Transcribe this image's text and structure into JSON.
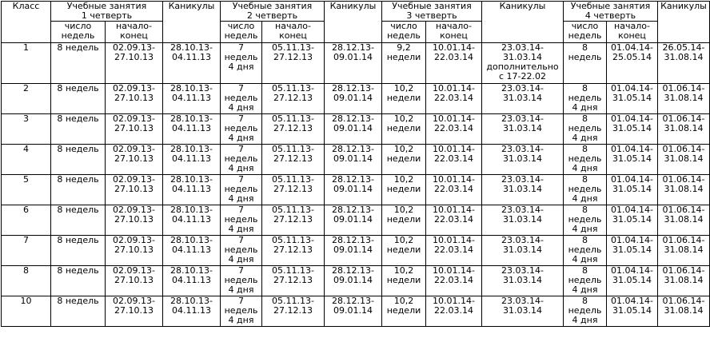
{
  "headers": {
    "klass": "Класс",
    "q1": [
      "Учебные занятия",
      "1 четверть"
    ],
    "kan1": "Каникулы",
    "q2": [
      "Учебные занятия",
      "2 четверть"
    ],
    "kan2": "Каникулы",
    "q3": [
      "Учебные занятия",
      "3 четверть"
    ],
    "kan3": "Каникулы",
    "q4": [
      "Учебные занятия",
      "4 четверть"
    ],
    "kan4": "Каникулы",
    "count": [
      "число",
      "недель"
    ],
    "range": [
      "начало-",
      "конец"
    ]
  },
  "rows": [
    {
      "klass": "1",
      "q1_weeks": [
        "8 недель"
      ],
      "q1_dates": [
        "02.09.13-",
        "27.10.13"
      ],
      "k1": [
        "28.10.13-",
        "04.11.13"
      ],
      "q2_weeks": [
        "7",
        "недель",
        "4 дня"
      ],
      "q2_dates": [
        "05.11.13-",
        "27.12.13"
      ],
      "k2": [
        "28.12.13-",
        "09.01.14"
      ],
      "q3_weeks": [
        "9,2",
        "недели"
      ],
      "q3_dates": [
        "10.01.14-",
        "22.03.14"
      ],
      "k3": [
        "23.03.14-",
        "31.03.14",
        "дополнительно",
        "с 17-22.02"
      ],
      "q4_weeks": [
        "8",
        "недель"
      ],
      "q4_dates": [
        "01.04.14-",
        "25.05.14"
      ],
      "k4": [
        "26.05.14-",
        "31.08.14"
      ]
    },
    {
      "klass": "2",
      "q1_weeks": [
        "8 недель"
      ],
      "q1_dates": [
        "02.09.13-",
        "27.10.13"
      ],
      "k1": [
        "28.10.13-",
        "04.11.13"
      ],
      "q2_weeks": [
        "7",
        "недель",
        "4 дня"
      ],
      "q2_dates": [
        "05.11.13-",
        "27.12.13"
      ],
      "k2": [
        "28.12.13-",
        "09.01.14"
      ],
      "q3_weeks": [
        "10,2",
        "недели"
      ],
      "q3_dates": [
        "10.01.14-",
        "22.03.14"
      ],
      "k3": [
        "23.03.14-",
        "31.03.14"
      ],
      "q4_weeks": [
        "8",
        "недель",
        "4 дня"
      ],
      "q4_dates": [
        "01.04.14-",
        "31.05.14"
      ],
      "k4": [
        "01.06.14-",
        "31.08.14"
      ]
    },
    {
      "klass": "3",
      "q1_weeks": [
        "8 недель"
      ],
      "q1_dates": [
        "02.09.13-",
        "27.10.13"
      ],
      "k1": [
        "28.10.13-",
        "04.11.13"
      ],
      "q2_weeks": [
        "7",
        "недель",
        "4 дня"
      ],
      "q2_dates": [
        "05.11.13-",
        "27.12.13"
      ],
      "k2": [
        "28.12.13-",
        "09.01.14"
      ],
      "q3_weeks": [
        "10,2",
        "недели"
      ],
      "q3_dates": [
        "10.01.14-",
        "22.03.14"
      ],
      "k3": [
        "23.03.14-",
        "31.03.14"
      ],
      "q4_weeks": [
        "8",
        "недель",
        "4 дня"
      ],
      "q4_dates": [
        "01.04.14-",
        "31.05.14"
      ],
      "k4": [
        "01.06.14-",
        "31.08.14"
      ]
    },
    {
      "klass": "4",
      "q1_weeks": [
        "8 недель"
      ],
      "q1_dates": [
        "02.09.13-",
        "27.10.13"
      ],
      "k1": [
        "28.10.13-",
        "04.11.13"
      ],
      "q2_weeks": [
        "7",
        "недель",
        "4 дня"
      ],
      "q2_dates": [
        "05.11.13-",
        "27.12.13"
      ],
      "k2": [
        "28.12.13-",
        "09.01.14"
      ],
      "q3_weeks": [
        "10,2",
        "недели"
      ],
      "q3_dates": [
        "10.01.14-",
        "22.03.14"
      ],
      "k3": [
        "23.03.14-",
        "31.03.14"
      ],
      "q4_weeks": [
        "8",
        "недель",
        "4 дня"
      ],
      "q4_dates": [
        "01.04.14-",
        "31.05.14"
      ],
      "k4": [
        "01.06.14-",
        "31.08.14"
      ]
    },
    {
      "klass": "5",
      "q1_weeks": [
        "8 недель"
      ],
      "q1_dates": [
        "02.09.13-",
        "27.10.13"
      ],
      "k1": [
        "28.10.13-",
        "04.11.13"
      ],
      "q2_weeks": [
        "7",
        "недель",
        "4 дня"
      ],
      "q2_dates": [
        "05.11.13-",
        "27.12.13"
      ],
      "k2": [
        "28.12.13-",
        "09.01.14"
      ],
      "q3_weeks": [
        "10,2",
        "недели"
      ],
      "q3_dates": [
        "10.01.14-",
        "22.03.14"
      ],
      "k3": [
        "23.03.14-",
        "31.03.14"
      ],
      "q4_weeks": [
        "8",
        "недель",
        "4 дня"
      ],
      "q4_dates": [
        "01.04.14-",
        "31.05.14"
      ],
      "k4": [
        "01.06.14-",
        "31.08.14"
      ]
    },
    {
      "klass": "6",
      "q1_weeks": [
        "8 недель"
      ],
      "q1_dates": [
        "02.09.13-",
        "27.10.13"
      ],
      "k1": [
        "28.10.13-",
        "04.11.13"
      ],
      "q2_weeks": [
        "7",
        "недель",
        "4 дня"
      ],
      "q2_dates": [
        "05.11.13-",
        "27.12.13"
      ],
      "k2": [
        "28.12.13-",
        "09.01.14"
      ],
      "q3_weeks": [
        "10,2",
        "недели"
      ],
      "q3_dates": [
        "10.01.14-",
        "22.03.14"
      ],
      "k3": [
        "23.03.14-",
        "31.03.14"
      ],
      "q4_weeks": [
        "8",
        "недель",
        "4 дня"
      ],
      "q4_dates": [
        "01.04.14-",
        "31.05.14"
      ],
      "k4": [
        "01.06.14-",
        "31.08.14"
      ]
    },
    {
      "klass": "7",
      "q1_weeks": [
        "8 недель"
      ],
      "q1_dates": [
        "02.09.13-",
        "27.10.13"
      ],
      "k1": [
        "28.10.13-",
        "04.11.13"
      ],
      "q2_weeks": [
        "7",
        "недель",
        "4 дня"
      ],
      "q2_dates": [
        "05.11.13-",
        "27.12.13"
      ],
      "k2": [
        "28.12.13-",
        "09.01.14"
      ],
      "q3_weeks": [
        "10,2",
        "недели"
      ],
      "q3_dates": [
        "10.01.14-",
        "22.03.14"
      ],
      "k3": [
        "23.03.14-",
        "31.03.14"
      ],
      "q4_weeks": [
        "8",
        "недель",
        "4 дня"
      ],
      "q4_dates": [
        "01.04.14-",
        "31.05.14"
      ],
      "k4": [
        "01.06.14-",
        "31.08.14"
      ]
    },
    {
      "klass": "8",
      "q1_weeks": [
        "8 недель"
      ],
      "q1_dates": [
        "02.09.13-",
        "27.10.13"
      ],
      "k1": [
        "28.10.13-",
        "04.11.13"
      ],
      "q2_weeks": [
        "7",
        "недель",
        "4 дня"
      ],
      "q2_dates": [
        "05.11.13-",
        "27.12.13"
      ],
      "k2": [
        "28.12.13-",
        "09.01.14"
      ],
      "q3_weeks": [
        "10,2",
        "недели"
      ],
      "q3_dates": [
        "10.01.14-",
        "22.03.14"
      ],
      "k3": [
        "23.03.14-",
        "31.03.14"
      ],
      "q4_weeks": [
        "8",
        "недель",
        "4 дня"
      ],
      "q4_dates": [
        "01.04.14-",
        "31.05.14"
      ],
      "k4": [
        "01.06.14-",
        "31.08.14"
      ]
    },
    {
      "klass": "10",
      "q1_weeks": [
        "8 недель"
      ],
      "q1_dates": [
        "02.09.13-",
        "27.10.13"
      ],
      "k1": [
        "28.10.13-",
        "04.11.13"
      ],
      "q2_weeks": [
        "7",
        "недель",
        "4 дня"
      ],
      "q2_dates": [
        "05.11.13-",
        "27.12.13"
      ],
      "k2": [
        "28.12.13-",
        "09.01.14"
      ],
      "q3_weeks": [
        "10,2",
        "недели"
      ],
      "q3_dates": [
        "10.01.14-",
        "22.03.14"
      ],
      "k3": [
        "23.03.14-",
        "31.03.14"
      ],
      "q4_weeks": [
        "8",
        "недель",
        "4 дня"
      ],
      "q4_dates": [
        "01.04.14-",
        "31.05.14"
      ],
      "k4": [
        "01.06.14-",
        "31.08.14"
      ]
    }
  ]
}
